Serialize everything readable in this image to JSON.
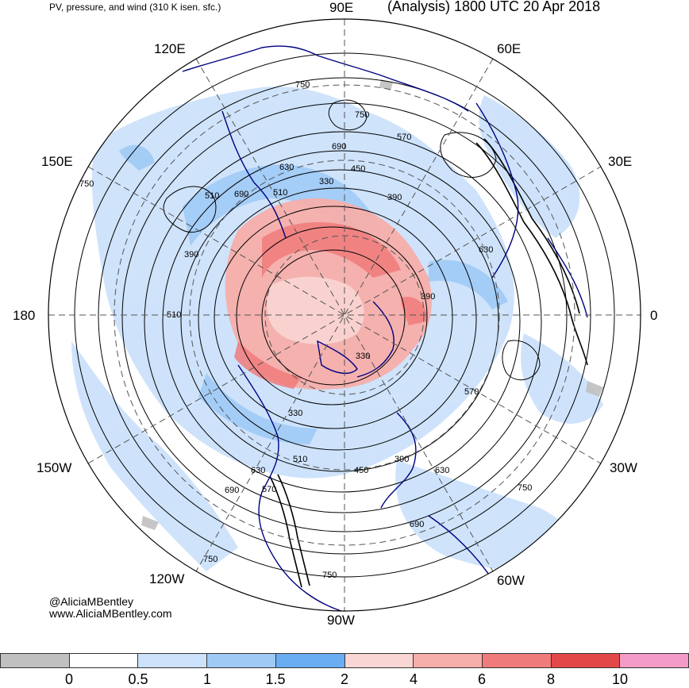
{
  "header": {
    "left_title": "PV, pressure, and wind (310 K isen. sfc.)",
    "right_title": "(Analysis) 1800 UTC 20 Apr 2018"
  },
  "map": {
    "projection": "north-polar-stereographic",
    "longitude_labels": {
      "top": "90E",
      "top_right": "60E",
      "upper_right": "30E",
      "right": "0",
      "lower_right": "30W",
      "bottom_right": "60W",
      "bottom": "90W",
      "bottom_left": "120W",
      "lower_left": "150W",
      "left": "180",
      "upper_left": "150E",
      "top_left": "120E"
    },
    "pressure_contour_labels": [
      "750",
      "750",
      "690",
      "630",
      "570",
      "510",
      "450",
      "390",
      "330",
      "390",
      "510",
      "570",
      "630",
      "690",
      "750",
      "750",
      "690",
      "630",
      "570",
      "510",
      "450",
      "390",
      "330",
      "330",
      "390",
      "510",
      "630",
      "690",
      "750",
      "750"
    ],
    "colors": {
      "contour": "#000000",
      "coastline": "#000080",
      "grid": "#555555"
    }
  },
  "credits": {
    "handle": "@AliciaMBentley",
    "website": "www.AliciaMBentley.com"
  },
  "colorbar": {
    "colors": [
      "#c0c0c0",
      "#ffffff",
      "#cce2fb",
      "#9fcaf6",
      "#6aadf3",
      "#f9d6d3",
      "#f6aeaa",
      "#f07b7b",
      "#e34848",
      "#f39ac6"
    ],
    "tick_labels": [
      "0",
      "0.5",
      "1",
      "1.5",
      "2",
      "4",
      "6",
      "8",
      "10"
    ]
  }
}
